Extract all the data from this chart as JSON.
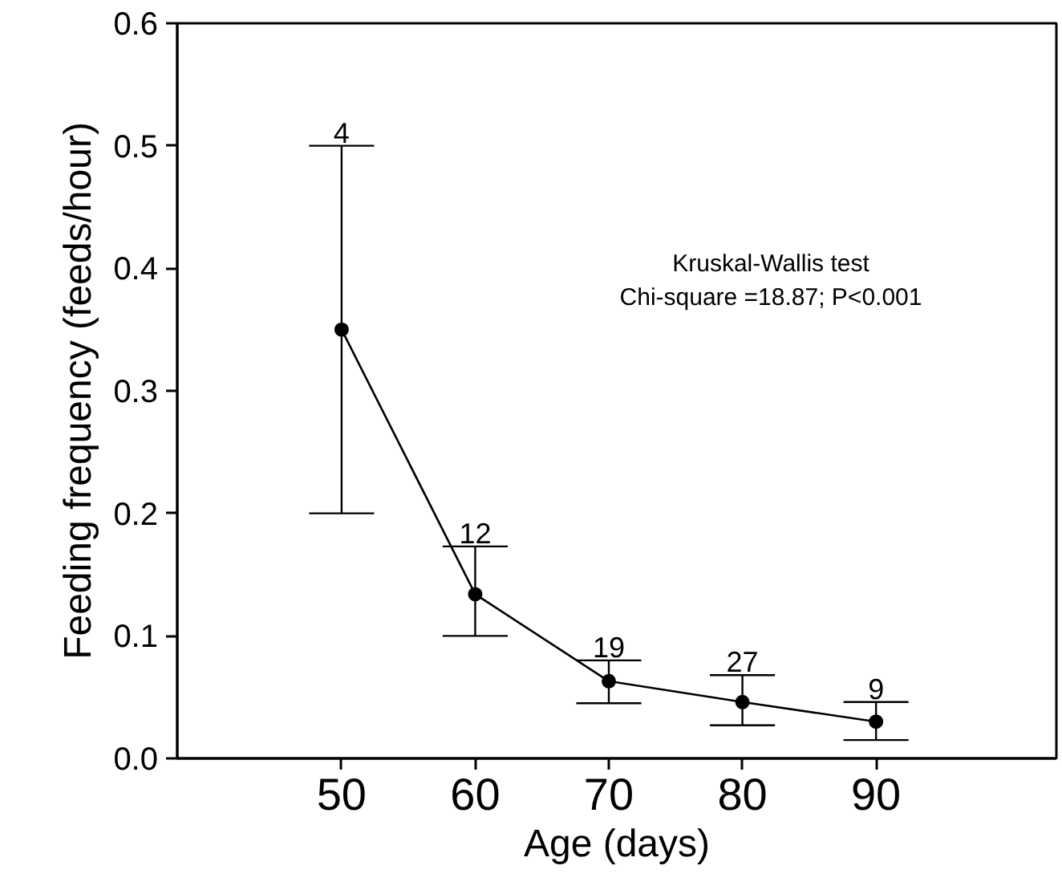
{
  "chart_data": {
    "type": "line",
    "xlabel": "Age (days)",
    "ylabel": "Feeding frequency (feeds/hour)",
    "x": [
      50,
      60,
      70,
      80,
      90
    ],
    "values": [
      0.35,
      0.134,
      0.063,
      0.046,
      0.03
    ],
    "errors": [
      [
        0.2,
        0.5
      ],
      [
        0.1,
        0.173
      ],
      [
        0.045,
        0.08
      ],
      [
        0.027,
        0.068
      ],
      [
        0.015,
        0.046
      ]
    ],
    "color": "#000000",
    "marker": "circle",
    "line_style": "solid",
    "xlim": [
      37.7,
      103.5
    ],
    "ylim": [
      0.0,
      0.6
    ],
    "xticks": [
      50,
      60,
      70,
      80,
      90
    ],
    "yticks": [
      {
        "value": 0.0,
        "label": "0.0"
      },
      0.1,
      0.2,
      0.3,
      0.4,
      0.5,
      0.6
    ],
    "grid": false,
    "annotations": [
      "4",
      "12",
      "19",
      "27",
      "9",
      "Kruskal-Wallis test",
      "Chi-square =18.87; P<0.001"
    ]
  }
}
